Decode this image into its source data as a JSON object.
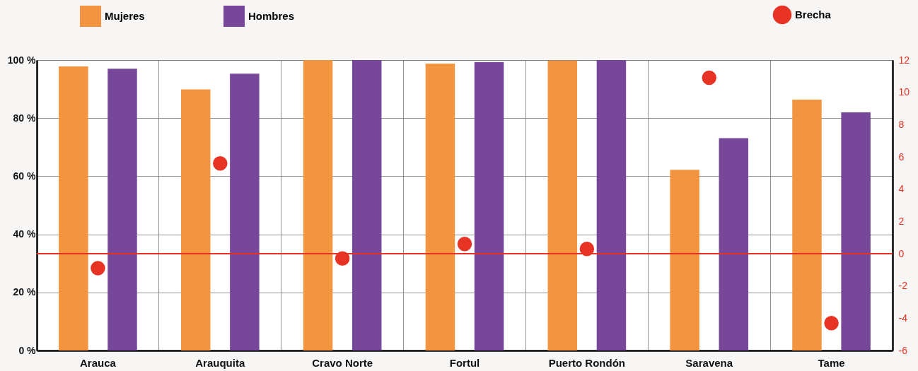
{
  "chart_data": {
    "type": "bar",
    "categories": [
      "Arauca",
      "Arauquita",
      "Cravo Norte",
      "Fortul",
      "Puerto Rondón",
      "Saravena",
      "Tame"
    ],
    "series": [
      {
        "name": "Mujeres",
        "color": "#f39540",
        "values": [
          97.8,
          89.9,
          100,
          98.8,
          99.8,
          62.2,
          86.4
        ]
      },
      {
        "name": "Hombres",
        "color": "#77479a",
        "values": [
          97.0,
          95.3,
          100,
          99.3,
          100,
          73.1,
          82.0
        ]
      },
      {
        "name": "Brecha",
        "type": "scatter",
        "axis": "y2",
        "color": "#e63323",
        "values": [
          -0.9,
          5.6,
          -0.3,
          0.6,
          0.3,
          10.9,
          -4.3
        ]
      }
    ],
    "ylim": [
      0,
      100
    ],
    "yticks": [
      {
        "value": 0,
        "label": "0 %"
      },
      {
        "value": 20,
        "label": "20 %"
      },
      {
        "value": 40,
        "label": "40 %"
      },
      {
        "value": 60,
        "label": "60 %"
      },
      {
        "value": 80,
        "label": "80 %"
      },
      {
        "value": 100,
        "label": "100 %"
      }
    ],
    "y2lim": [
      -6,
      12
    ],
    "y2ticks": [
      -6,
      -4,
      -2,
      0,
      2,
      4,
      6,
      8,
      10,
      12
    ],
    "ref_lines": [
      {
        "axis": "y2",
        "value": 0,
        "color": "#e63323"
      }
    ],
    "grid": true,
    "legend": "top",
    "marker": "circle"
  }
}
